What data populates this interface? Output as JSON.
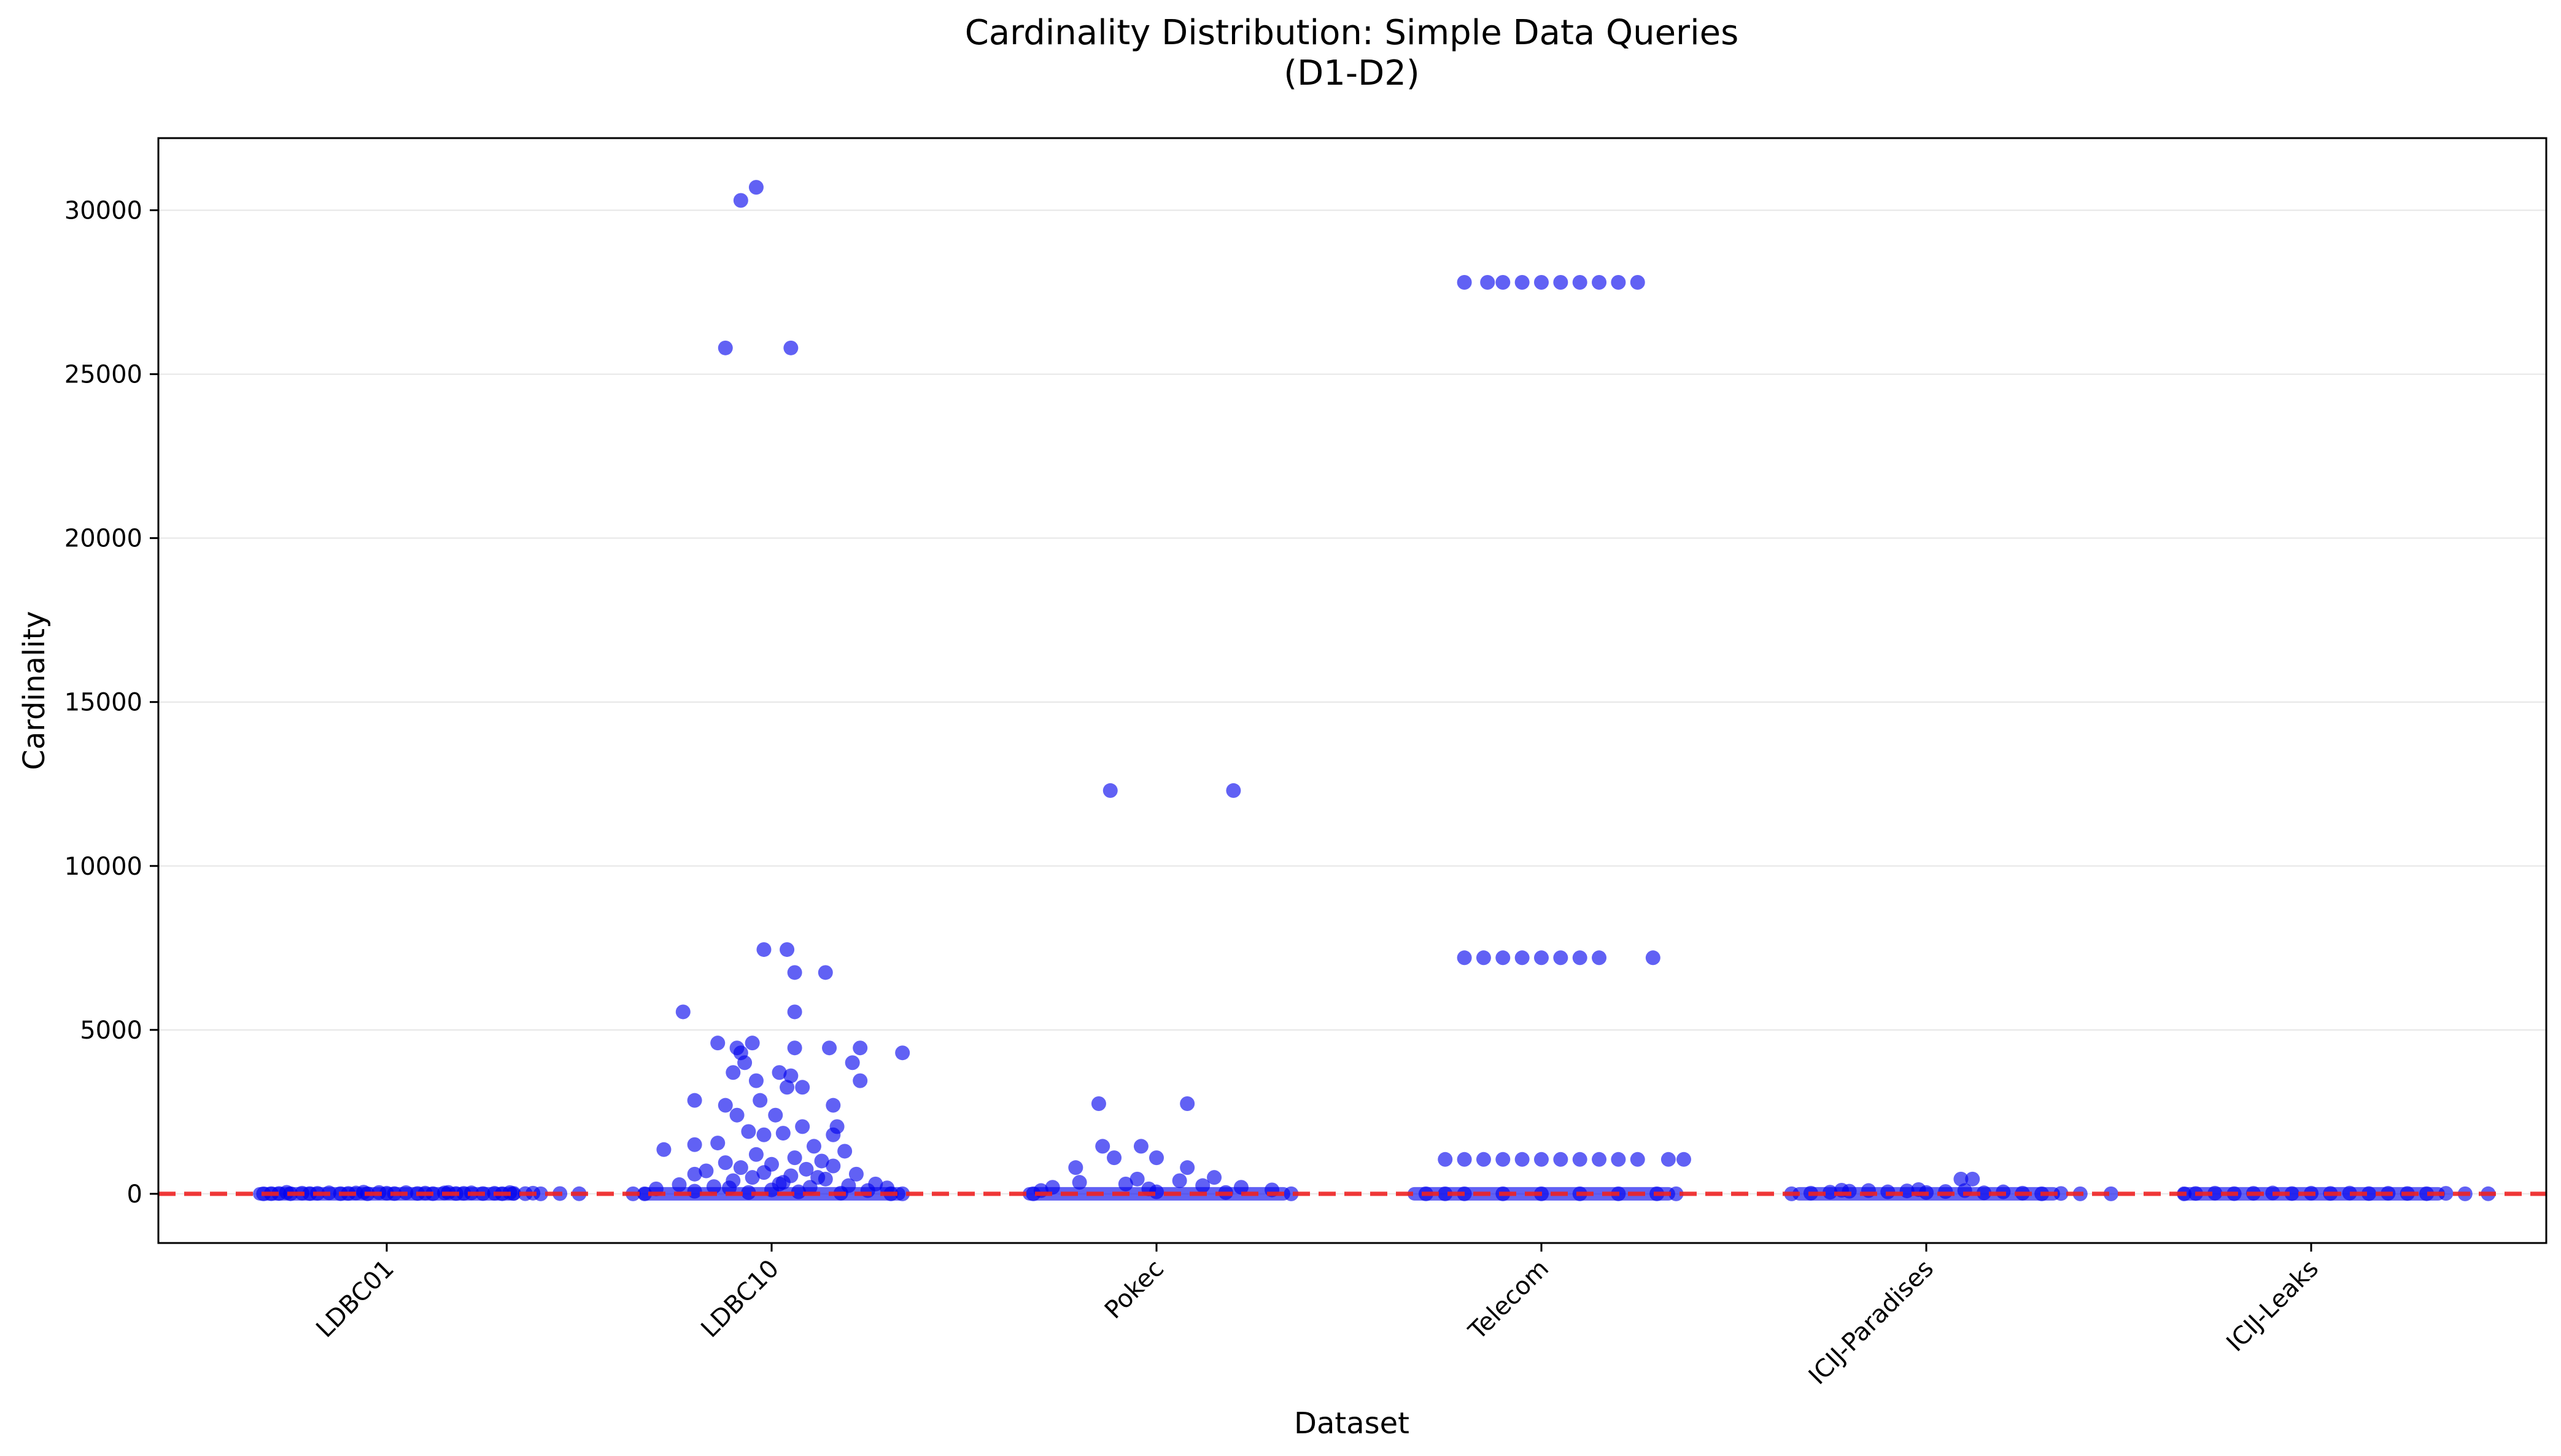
{
  "chart_data": {
    "type": "scatter",
    "title": "Cardinality Distribution: Simple Data Queries",
    "subtitle": "(D1-D2)",
    "xlabel": "Dataset",
    "ylabel": "Cardinality",
    "categories": [
      "LDBC01",
      "LDBC10",
      "Pokec",
      "Telecom",
      "ICIJ-Paradises",
      "ICIJ-Leaks"
    ],
    "ylim": [
      -1500,
      32200
    ],
    "yticks": [
      0,
      5000,
      10000,
      15000,
      20000,
      25000,
      30000
    ],
    "grid": "y",
    "reference_line": {
      "y": 0,
      "color": "#ee2222",
      "style": "dashed"
    },
    "point_color": "#0000ee",
    "series": [
      {
        "category": "LDBC01",
        "points": [
          [
            -0.32,
            0
          ],
          [
            -0.3,
            5
          ],
          [
            -0.28,
            10
          ],
          [
            -0.25,
            3
          ],
          [
            -0.22,
            20
          ],
          [
            -0.2,
            8
          ],
          [
            -0.18,
            15
          ],
          [
            -0.15,
            30
          ],
          [
            -0.12,
            5
          ],
          [
            -0.1,
            12
          ],
          [
            -0.08,
            25
          ],
          [
            -0.05,
            2
          ],
          [
            -0.02,
            40
          ],
          [
            0,
            18
          ],
          [
            0.02,
            6
          ],
          [
            0.05,
            35
          ],
          [
            0.08,
            10
          ],
          [
            0.1,
            22
          ],
          [
            0.12,
            4
          ],
          [
            0.15,
            28
          ],
          [
            0.18,
            9
          ],
          [
            0.2,
            14
          ],
          [
            0.22,
            30
          ],
          [
            0.25,
            7
          ],
          [
            0.28,
            16
          ],
          [
            0.3,
            3
          ],
          [
            0.33,
            12
          ],
          [
            0.36,
            5
          ],
          [
            0.38,
            20
          ],
          [
            0.4,
            0
          ],
          [
            0.45,
            8
          ],
          [
            0.5,
            2
          ],
          [
            -0.26,
            45
          ],
          [
            -0.06,
            50
          ],
          [
            0.16,
            42
          ],
          [
            0.32,
            38
          ]
        ]
      },
      {
        "category": "LDBC10",
        "points": [
          [
            -0.08,
            30300
          ],
          [
            -0.04,
            30700
          ],
          [
            -0.12,
            25800
          ],
          [
            0.05,
            25800
          ],
          [
            -0.02,
            7450
          ],
          [
            0.04,
            7450
          ],
          [
            0.14,
            6750
          ],
          [
            0.06,
            6750
          ],
          [
            -0.23,
            5550
          ],
          [
            0.06,
            5550
          ],
          [
            -0.14,
            4600
          ],
          [
            -0.05,
            4600
          ],
          [
            -0.09,
            4450
          ],
          [
            0.06,
            4450
          ],
          [
            0.15,
            4450
          ],
          [
            0.23,
            4450
          ],
          [
            0.34,
            4300
          ],
          [
            -0.08,
            4300
          ],
          [
            -0.07,
            4000
          ],
          [
            0.21,
            4000
          ],
          [
            -0.1,
            3700
          ],
          [
            0.02,
            3700
          ],
          [
            0.05,
            3600
          ],
          [
            -0.04,
            3450
          ],
          [
            0.23,
            3450
          ],
          [
            0.08,
            3250
          ],
          [
            0.04,
            3250
          ],
          [
            -0.2,
            2850
          ],
          [
            -0.03,
            2850
          ],
          [
            0.16,
            2700
          ],
          [
            -0.12,
            2700
          ],
          [
            -0.09,
            2400
          ],
          [
            0.01,
            2400
          ],
          [
            0.17,
            2050
          ],
          [
            0.08,
            2050
          ],
          [
            -0.06,
            1900
          ],
          [
            0.03,
            1850
          ],
          [
            -0.02,
            1800
          ],
          [
            0.16,
            1800
          ],
          [
            -0.14,
            1550
          ],
          [
            -0.2,
            1500
          ],
          [
            0.11,
            1450
          ],
          [
            -0.28,
            1350
          ],
          [
            0.19,
            1300
          ],
          [
            -0.04,
            1200
          ],
          [
            0.06,
            1100
          ],
          [
            0.13,
            1000
          ],
          [
            -0.12,
            950
          ],
          [
            0.0,
            900
          ],
          [
            0.16,
            850
          ],
          [
            -0.08,
            800
          ],
          [
            0.09,
            750
          ],
          [
            -0.17,
            700
          ],
          [
            0.22,
            600
          ],
          [
            -0.2,
            600
          ],
          [
            0.05,
            550
          ],
          [
            -0.05,
            500
          ],
          [
            0.14,
            450
          ],
          [
            -0.1,
            400
          ],
          [
            0.03,
            350
          ],
          [
            0.27,
            300
          ],
          [
            -0.24,
            280
          ],
          [
            0.2,
            250
          ],
          [
            -0.15,
            220
          ],
          [
            0.1,
            200
          ],
          [
            0.3,
            180
          ],
          [
            -0.3,
            150
          ],
          [
            0.0,
            120
          ],
          [
            0.25,
            100
          ],
          [
            -0.2,
            80
          ],
          [
            0.07,
            60
          ],
          [
            -0.06,
            40
          ],
          [
            0.18,
            20
          ],
          [
            -0.36,
            0
          ],
          [
            0.34,
            0
          ],
          [
            -0.33,
            0
          ],
          [
            0.31,
            0
          ],
          [
            0.12,
            500
          ],
          [
            -0.02,
            650
          ],
          [
            0.02,
            300
          ],
          [
            -0.11,
            180
          ]
        ]
      },
      {
        "category": "Pokec",
        "points": [
          [
            -0.12,
            12300
          ],
          [
            0.2,
            12300
          ],
          [
            -0.15,
            2750
          ],
          [
            0.08,
            2750
          ],
          [
            -0.14,
            1450
          ],
          [
            -0.04,
            1450
          ],
          [
            -0.11,
            1100
          ],
          [
            0.0,
            1100
          ],
          [
            -0.21,
            800
          ],
          [
            0.08,
            800
          ],
          [
            0.15,
            500
          ],
          [
            -0.05,
            450
          ],
          [
            -0.2,
            350
          ],
          [
            0.06,
            400
          ],
          [
            -0.08,
            300
          ],
          [
            0.12,
            250
          ],
          [
            -0.27,
            200
          ],
          [
            0.22,
            200
          ],
          [
            -0.3,
            100
          ],
          [
            0.3,
            120
          ],
          [
            -0.02,
            150
          ],
          [
            0.0,
            60
          ],
          [
            0.35,
            0
          ],
          [
            -0.32,
            0
          ],
          [
            0.18,
            40
          ]
        ]
      },
      {
        "category": "Telecom",
        "points": [
          [
            -0.2,
            27800
          ],
          [
            -0.14,
            27800
          ],
          [
            -0.1,
            27800
          ],
          [
            -0.05,
            27800
          ],
          [
            0.0,
            27800
          ],
          [
            0.05,
            27800
          ],
          [
            0.1,
            27800
          ],
          [
            0.15,
            27800
          ],
          [
            0.2,
            27800
          ],
          [
            0.25,
            27800
          ],
          [
            -0.2,
            7200
          ],
          [
            -0.15,
            7200
          ],
          [
            -0.1,
            7200
          ],
          [
            -0.05,
            7200
          ],
          [
            0.0,
            7200
          ],
          [
            0.05,
            7200
          ],
          [
            0.1,
            7200
          ],
          [
            0.15,
            7200
          ],
          [
            0.29,
            7200
          ],
          [
            -0.25,
            1050
          ],
          [
            -0.2,
            1050
          ],
          [
            -0.15,
            1050
          ],
          [
            -0.1,
            1050
          ],
          [
            -0.05,
            1050
          ],
          [
            0.0,
            1050
          ],
          [
            0.05,
            1050
          ],
          [
            0.1,
            1050
          ],
          [
            0.15,
            1050
          ],
          [
            0.2,
            1050
          ],
          [
            0.25,
            1050
          ],
          [
            0.33,
            1050
          ],
          [
            0.37,
            1050
          ],
          [
            -0.3,
            0
          ],
          [
            -0.25,
            0
          ],
          [
            -0.2,
            0
          ],
          [
            -0.1,
            0
          ],
          [
            0.0,
            0
          ],
          [
            0.1,
            0
          ],
          [
            0.2,
            0
          ],
          [
            0.3,
            0
          ],
          [
            0.35,
            0
          ]
        ]
      },
      {
        "category": "ICIJ-Paradises",
        "points": [
          [
            -0.35,
            0
          ],
          [
            -0.3,
            20
          ],
          [
            -0.25,
            50
          ],
          [
            -0.2,
            80
          ],
          [
            -0.15,
            100
          ],
          [
            -0.1,
            60
          ],
          [
            -0.05,
            90
          ],
          [
            0.0,
            40
          ],
          [
            0.05,
            70
          ],
          [
            0.1,
            100
          ],
          [
            0.15,
            30
          ],
          [
            0.2,
            60
          ],
          [
            0.25,
            20
          ],
          [
            0.3,
            0
          ],
          [
            0.35,
            10
          ],
          [
            0.4,
            0
          ],
          [
            0.48,
            0
          ],
          [
            0.09,
            450
          ],
          [
            0.12,
            450
          ],
          [
            -0.22,
            110
          ],
          [
            -0.02,
            130
          ]
        ]
      },
      {
        "category": "ICIJ-Leaks",
        "points": [
          [
            -0.33,
            0
          ],
          [
            -0.3,
            10
          ],
          [
            -0.25,
            20
          ],
          [
            -0.2,
            5
          ],
          [
            -0.15,
            15
          ],
          [
            -0.1,
            25
          ],
          [
            -0.05,
            8
          ],
          [
            0.0,
            18
          ],
          [
            0.05,
            12
          ],
          [
            0.1,
            22
          ],
          [
            0.15,
            6
          ],
          [
            0.2,
            16
          ],
          [
            0.25,
            10
          ],
          [
            0.3,
            3
          ],
          [
            0.35,
            14
          ],
          [
            0.4,
            0
          ],
          [
            0.46,
            2
          ]
        ]
      }
    ]
  }
}
